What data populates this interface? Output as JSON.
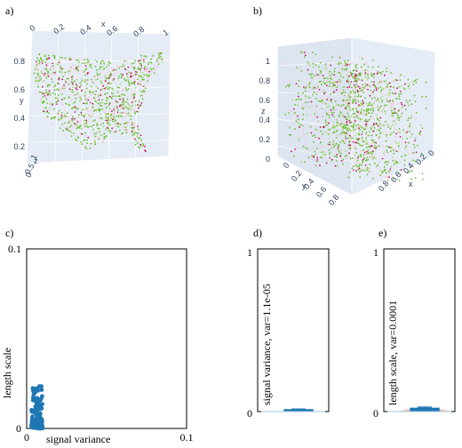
{
  "chart_data": [
    {
      "type": "scatter",
      "panel_label": "a)",
      "title": "",
      "axes": {
        "x": {
          "label": "x",
          "ticks": [
            "0",
            "0.2",
            "0.4",
            "0.6",
            "0.8",
            "1"
          ]
        },
        "y": {
          "label": "y",
          "ticks": [
            "0.2",
            "0.4",
            "0.6",
            "0.8"
          ]
        },
        "z": {
          "label": "z",
          "ticks": [
            "0",
            "0.5",
            "1"
          ]
        }
      },
      "description": "3D scatter, top-down view; points form the shape of the contiguous United States, colored green (low) to pink/magenta (high)",
      "colors": {
        "low": "#6bbf2a",
        "mid": "#f4c6d8",
        "high": "#c2185b",
        "pane": "#e5ecf6"
      }
    },
    {
      "type": "scatter",
      "panel_label": "b)",
      "title": "",
      "axes": {
        "x": {
          "label": "x",
          "ticks": [
            "0",
            "0.2",
            "0.4",
            "0.6",
            "0.8"
          ]
        },
        "y": {
          "label": "y",
          "ticks": [
            "0",
            "0.2",
            "0.4",
            "0.6",
            "0.8"
          ]
        },
        "z": {
          "label": "z",
          "ticks": [
            "0",
            "0.2",
            "0.4",
            "0.6",
            "0.8",
            "1"
          ]
        }
      },
      "description": "3D scatter, oblique view of the same point cloud filling a unit cube",
      "colors": {
        "low": "#6bbf2a",
        "mid": "#f4c6d8",
        "high": "#c2185b",
        "pane": "#e5ecf6"
      }
    },
    {
      "type": "scatter",
      "panel_label": "c)",
      "xlabel": "signal variance",
      "ylabel": "length scale",
      "xlim": [
        0,
        0.1
      ],
      "ylim": [
        0,
        0.1
      ],
      "x_ticks": [
        "0",
        "0.1"
      ],
      "y_ticks": [
        "0",
        "0.1"
      ],
      "color": "#1f77b4",
      "x_range": [
        0.003,
        0.01
      ],
      "y_range": [
        0,
        0.024
      ],
      "point_count": 150
    },
    {
      "type": "boxplot",
      "panel_label": "d)",
      "ylabel": "signal variance, var=1.1e-05",
      "ylim": [
        0,
        1
      ],
      "y_ticks": [
        "0",
        "1"
      ],
      "box": {
        "min": 0.0,
        "q1": 0.003,
        "median": 0.007,
        "q3": 0.011,
        "max": 0.015
      },
      "color": "#1f77b4"
    },
    {
      "type": "boxplot",
      "panel_label": "e)",
      "ylabel": "length scale, var=0.0001",
      "ylim": [
        0,
        1
      ],
      "y_ticks": [
        "0",
        "1"
      ],
      "box": {
        "min": 0.0,
        "q1": 0.005,
        "median": 0.012,
        "q3": 0.02,
        "max": 0.027
      },
      "color": "#1f77b4",
      "violin_color": "#f4a6a6"
    }
  ]
}
